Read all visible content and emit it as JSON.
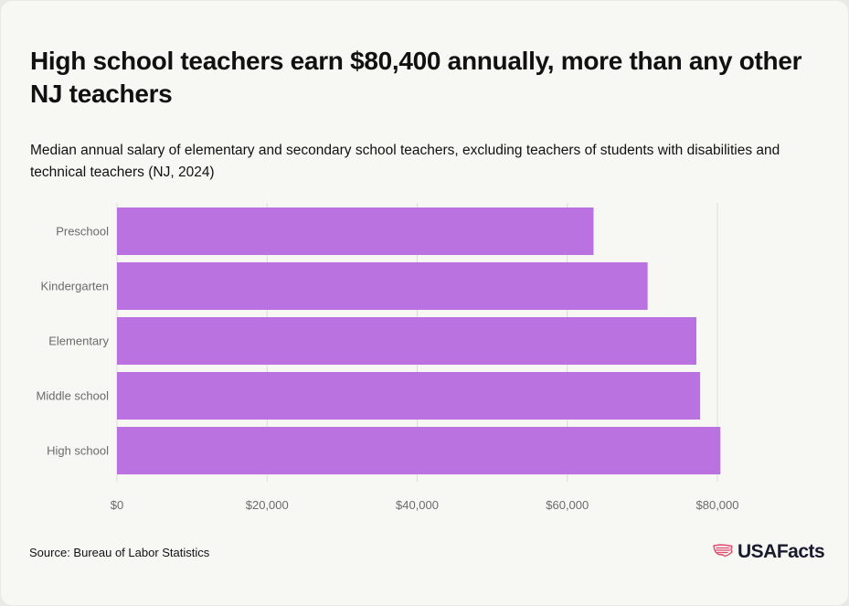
{
  "header": {
    "title": "High school teachers earn $80,400 annually, more than any other NJ teachers",
    "subtitle": "Median annual salary of elementary and secondary school teachers, excluding teachers of students with disabilities and technical teachers (NJ, 2024)"
  },
  "footer": {
    "source": "Source: Bureau of Labor Statistics",
    "logo_text": "USAFacts",
    "logo_icon": "us-flag-map-icon"
  },
  "colors": {
    "bar": "#b972df",
    "grid": "#dcdcd8",
    "text_muted": "#6b6b6b",
    "logo_accent": "#e04a6c"
  },
  "chart_data": {
    "type": "bar",
    "orientation": "horizontal",
    "title": "",
    "xlabel": "",
    "ylabel": "",
    "categories": [
      "Preschool",
      "Kindergarten",
      "Elementary",
      "Middle school",
      "High school"
    ],
    "values": [
      63500,
      70700,
      77200,
      77700,
      80400
    ],
    "xlim": [
      0,
      80000
    ],
    "ticks": [
      0,
      20000,
      40000,
      60000,
      80000
    ],
    "tick_labels": [
      "$0",
      "$20,000",
      "$40,000",
      "$60,000",
      "$80,000"
    ],
    "grid": true,
    "legend": "none"
  }
}
